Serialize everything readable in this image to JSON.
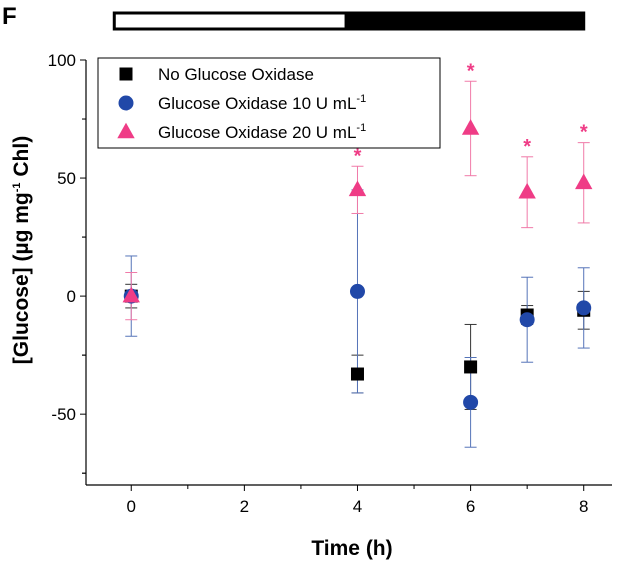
{
  "panel_label": "F",
  "colors": {
    "series0": "#000000",
    "series1": "#2148a8",
    "series2": "#ef3c86",
    "err0": "#333333",
    "err1": "#5574b8",
    "err2": "#f07aa8"
  },
  "chart_data": {
    "type": "scatter",
    "xlabel": "Time (h)",
    "ylabel_parts": [
      "[Glucose] (µg mg",
      "-1",
      " Chl)"
    ],
    "xlim": [
      -0.8,
      8.5
    ],
    "ylim": [
      -80,
      100
    ],
    "xticks": [
      0,
      2,
      4,
      6,
      8
    ],
    "yticks": [
      -50,
      0,
      50,
      100
    ],
    "grid": false,
    "legend_position": "top-left",
    "light_dark_bar": {
      "light": [
        -0.3,
        3.8
      ],
      "dark": [
        3.8,
        8.0
      ]
    },
    "series": [
      {
        "name_parts": [
          "No Glucose Oxidase",
          "",
          ""
        ],
        "marker": "square",
        "x": [
          0,
          4,
          6,
          7,
          8
        ],
        "y": [
          0,
          -33,
          -30,
          -8,
          -6
        ],
        "err": [
          5,
          8,
          18,
          4,
          8
        ],
        "stars": [
          false,
          false,
          false,
          false,
          false
        ]
      },
      {
        "name_parts": [
          "Glucose Oxidase 10 U mL",
          "-1",
          ""
        ],
        "marker": "circle",
        "x": [
          0,
          4,
          6,
          7,
          8
        ],
        "y": [
          0,
          2,
          -45,
          -10,
          -5
        ],
        "err": [
          17,
          43,
          19,
          18,
          17
        ],
        "stars": [
          false,
          false,
          false,
          false,
          false
        ]
      },
      {
        "name_parts": [
          "Glucose Oxidase 20 U mL",
          "-1",
          ""
        ],
        "marker": "triangle",
        "x": [
          0,
          4,
          6,
          7,
          8
        ],
        "y": [
          0,
          45,
          71,
          44,
          48
        ],
        "err": [
          10,
          10,
          20,
          15,
          17
        ],
        "stars": [
          false,
          true,
          true,
          true,
          true
        ]
      }
    ],
    "star_symbol": "*"
  }
}
